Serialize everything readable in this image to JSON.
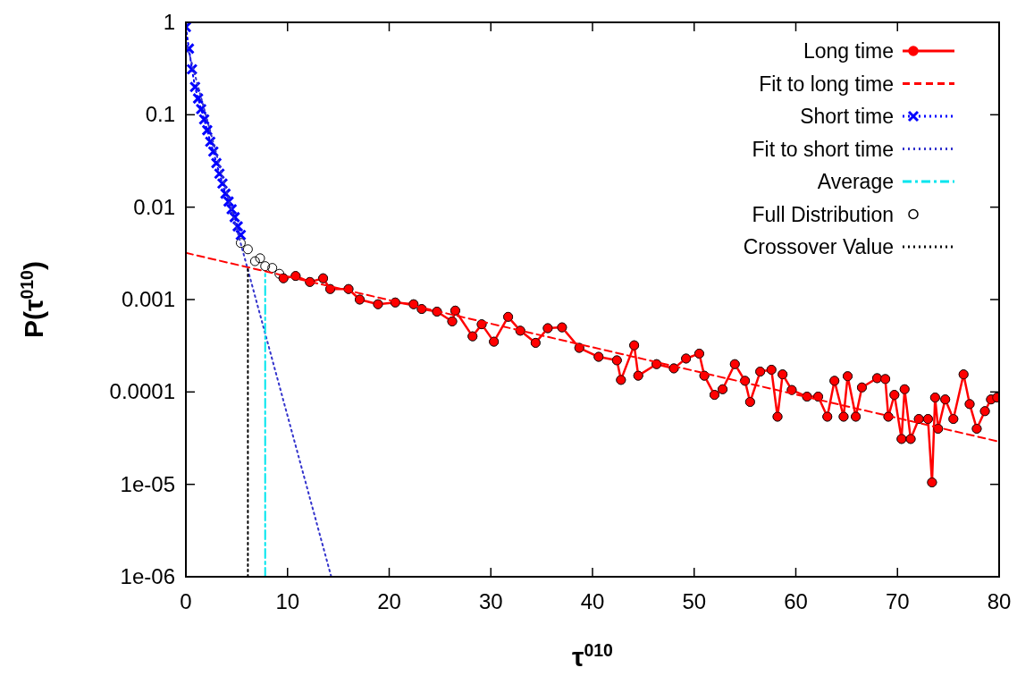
{
  "chart_data": {
    "type": "line",
    "xlabel": "τ$^{010}$",
    "ylabel": "P(τ$^{010}$)",
    "xlim": [
      0,
      80
    ],
    "xticks": [
      0,
      10,
      20,
      30,
      40,
      50,
      60,
      70,
      80
    ],
    "ylim": [
      1e-06,
      1
    ],
    "log": "y",
    "yticks": [
      1,
      0.1,
      0.01,
      0.001,
      0.0001,
      {
        "value": 1e-05,
        "label": "1e-05"
      },
      {
        "value": 1e-06,
        "label": "1e-06"
      }
    ],
    "grid": false,
    "legend": "top right",
    "series": [
      {
        "name": "Long time",
        "type": "line",
        "color": "#ff0000",
        "line_style": "solid",
        "marker": "circle",
        "x": [
          9.6,
          10.8,
          12.2,
          13.5,
          14.2,
          16.0,
          17.1,
          18.9,
          20.6,
          22.4,
          23.2,
          24.7,
          26.2,
          26.5,
          28.2,
          29.1,
          30.3,
          31.7,
          32.9,
          34.4,
          35.6,
          37.0,
          38.7,
          40.6,
          42.4,
          42.8,
          44.1,
          44.5,
          46.3,
          48.0,
          49.2,
          50.5,
          51.0,
          52.0,
          52.8,
          54.0,
          55.0,
          55.5,
          56.5,
          57.6,
          58.2,
          58.7,
          59.6,
          61.1,
          62.2,
          63.1,
          63.8,
          64.7,
          65.1,
          65.9,
          66.5,
          68.0,
          68.8,
          69.1,
          69.7,
          70.4,
          70.7,
          71.3,
          72.1,
          73.0,
          73.4,
          73.7,
          74.0,
          74.7,
          75.5,
          76.5,
          77.1,
          77.8,
          78.6,
          79.2,
          79.8
        ],
        "values": [
          0.0017,
          0.0018,
          0.00155,
          0.0017,
          0.0013,
          0.0013,
          0.001,
          0.00089,
          0.00093,
          0.00089,
          0.00079,
          0.00074,
          0.00058,
          0.00076,
          0.0004,
          0.00054,
          0.00035,
          0.00065,
          0.00046,
          0.00034,
          0.00049,
          0.0005,
          0.0003,
          0.00024,
          0.00022,
          0.000135,
          0.00032,
          0.00015,
          0.0002,
          0.00018,
          0.00023,
          0.00026,
          0.00015,
          9.3e-05,
          0.000107,
          0.0002,
          0.000132,
          7.8e-05,
          0.000166,
          0.000174,
          5.4e-05,
          0.000155,
          0.000105,
          8.9e-05,
          8.9e-05,
          5.4e-05,
          0.000132,
          5.4e-05,
          0.000148,
          5.4e-05,
          0.000112,
          0.000141,
          0.000138,
          5.4e-05,
          9.3e-05,
          3.1e-05,
          0.000107,
          3.1e-05,
          5.1e-05,
          5.1e-05,
          1.05e-05,
          8.7e-05,
          4e-05,
          8.3e-05,
          5.1e-05,
          0.000155,
          7.4e-05,
          4e-05,
          6.2e-05,
          8.3e-05,
          8.7e-05
        ]
      },
      {
        "name": "Fit to long time",
        "type": "line",
        "color": "#ff0000",
        "line_style": "dashed",
        "marker": "none",
        "x": [
          0,
          80
        ],
        "values": [
          0.0032,
          2.9e-05
        ]
      },
      {
        "name": "Short time",
        "type": "line",
        "color": "#0000ff",
        "line_style": "dotted",
        "marker": "cross",
        "x": [
          0,
          0.3,
          0.6,
          0.9,
          1.2,
          1.5,
          1.8,
          2.1,
          2.4,
          2.7,
          3.0,
          3.3,
          3.6,
          3.9,
          4.2,
          4.5,
          4.8,
          5.1,
          5.4
        ],
        "values": [
          0.89,
          0.52,
          0.31,
          0.2,
          0.15,
          0.115,
          0.089,
          0.068,
          0.051,
          0.04,
          0.03,
          0.023,
          0.018,
          0.014,
          0.0115,
          0.0095,
          0.0078,
          0.0062,
          0.005
        ]
      },
      {
        "name": "Fit to short time",
        "type": "line",
        "color": "#3333cc",
        "line_style": "dotted",
        "marker": "none",
        "x": [
          0,
          14.3
        ],
        "values": [
          0.62,
          1e-06
        ]
      },
      {
        "name": "Average",
        "type": "line",
        "color": "#00e5ee",
        "line_style": "dashdot",
        "marker": "none",
        "x": [
          7.8,
          7.8
        ],
        "values": [
          1e-06,
          0.0019
        ]
      },
      {
        "name": "Full Distribution",
        "type": "scatter",
        "color": "#000000",
        "marker": "circle",
        "x": [
          5.4,
          6.1,
          6.8,
          7.3,
          7.8,
          8.5,
          9.2,
          9.6,
          10.8,
          12.2,
          13.5,
          14.2,
          16.0,
          17.1,
          18.9,
          20.6,
          22.4,
          23.2,
          24.7,
          26.2,
          26.5,
          28.2,
          29.1,
          30.3,
          31.7,
          32.9,
          34.4,
          35.6,
          37.0,
          38.7,
          40.6,
          42.4,
          42.8,
          44.1,
          44.5,
          46.3,
          48.0,
          49.2,
          50.5,
          51.0,
          52.0,
          52.8,
          54.0,
          55.0,
          55.5,
          56.5,
          57.6,
          58.2,
          58.7,
          59.6,
          61.1,
          62.2,
          63.1,
          63.8,
          64.7,
          65.1,
          65.9,
          66.5,
          68.0,
          68.8,
          69.1,
          69.7,
          70.4,
          70.7,
          71.3,
          72.1,
          73.0,
          73.4,
          73.7,
          74.0,
          74.7,
          75.5,
          76.5,
          77.1,
          77.8,
          78.6,
          79.2,
          79.8
        ],
        "values": [
          0.0041,
          0.0035,
          0.0026,
          0.0028,
          0.0023,
          0.0022,
          0.0019,
          0.0017,
          0.0018,
          0.00155,
          0.0017,
          0.0013,
          0.0013,
          0.001,
          0.00089,
          0.00093,
          0.00089,
          0.00079,
          0.00074,
          0.00058,
          0.00076,
          0.0004,
          0.00054,
          0.00035,
          0.00065,
          0.00046,
          0.00034,
          0.00049,
          0.0005,
          0.0003,
          0.00024,
          0.00022,
          0.000135,
          0.00032,
          0.00015,
          0.0002,
          0.00018,
          0.00023,
          0.00026,
          0.00015,
          9.3e-05,
          0.000107,
          0.0002,
          0.000132,
          7.8e-05,
          0.000166,
          0.000174,
          5.4e-05,
          0.000155,
          0.000105,
          8.9e-05,
          8.9e-05,
          5.4e-05,
          0.000132,
          5.4e-05,
          0.000148,
          5.4e-05,
          0.000112,
          0.000141,
          0.000138,
          5.4e-05,
          9.3e-05,
          3.1e-05,
          0.000107,
          3.1e-05,
          5.1e-05,
          5.1e-05,
          1.05e-05,
          8.7e-05,
          4e-05,
          8.3e-05,
          5.1e-05,
          0.000155,
          7.4e-05,
          4e-05,
          6.2e-05,
          8.3e-05,
          8.7e-05
        ]
      },
      {
        "name": "Crossover Value",
        "type": "line",
        "color": "#000000",
        "line_style": "dotted",
        "marker": "none",
        "x": [
          6.1,
          6.1
        ],
        "values": [
          1e-06,
          0.0022
        ]
      }
    ]
  }
}
